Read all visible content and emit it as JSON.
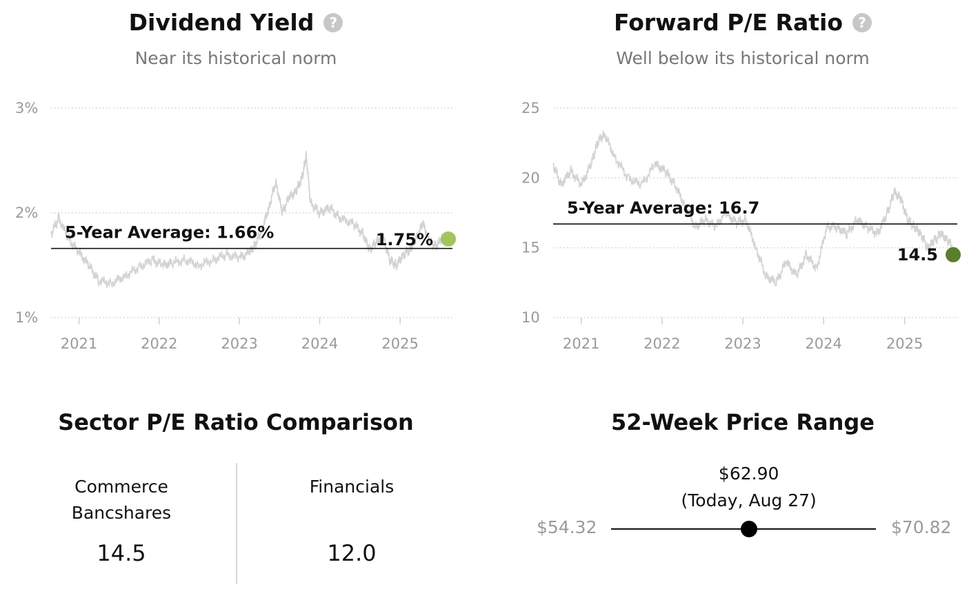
{
  "dividend": {
    "title": "Dividend Yield",
    "help_icon": "question-circle-icon",
    "subtitle": "Near its historical norm",
    "chart_data": {
      "type": "line",
      "ylim": [
        1,
        3
      ],
      "yticks": [
        1,
        2,
        3
      ],
      "ytick_labels": [
        "1%",
        "2%",
        "3%"
      ],
      "xlim": [
        "2020-08-27",
        "2025-08-27"
      ],
      "xticks": [
        "2021-01-01",
        "2022-01-01",
        "2023-01-01",
        "2024-01-01",
        "2025-01-01"
      ],
      "xtick_labels": [
        "2021",
        "2022",
        "2023",
        "2024",
        "2025"
      ],
      "average": 1.66,
      "average_label": "5-Year Average: 1.66%",
      "current": 1.75,
      "current_label": "1.75%",
      "current_color": "#a5c25c",
      "line_color": "#d3d3d3",
      "grid": true,
      "series": [
        {
          "x": [
            "2020-08-27",
            "2020-10-01",
            "2020-11-15",
            "2021-01-01",
            "2021-02-15",
            "2021-04-01",
            "2021-06-01",
            "2021-08-01",
            "2021-10-01",
            "2021-12-01",
            "2022-01-15",
            "2022-03-01",
            "2022-05-01",
            "2022-07-01",
            "2022-09-01",
            "2022-11-01",
            "2023-01-01",
            "2023-02-15",
            "2023-03-15",
            "2023-04-15",
            "2023-05-15",
            "2023-06-15",
            "2023-07-15",
            "2023-08-15",
            "2023-09-15",
            "2023-10-15",
            "2023-11-01",
            "2023-11-20",
            "2024-01-01",
            "2024-02-15",
            "2024-04-01",
            "2024-06-01",
            "2024-07-15",
            "2024-08-15",
            "2024-09-15",
            "2024-10-15",
            "2024-11-15",
            "2024-12-15",
            "2025-01-15",
            "2025-02-15",
            "2025-03-15",
            "2025-04-15",
            "2025-05-15",
            "2025-06-15",
            "2025-07-15",
            "2025-08-27"
          ],
          "y": [
            1.8,
            1.95,
            1.75,
            1.62,
            1.5,
            1.35,
            1.33,
            1.4,
            1.48,
            1.55,
            1.5,
            1.52,
            1.55,
            1.5,
            1.55,
            1.6,
            1.57,
            1.62,
            1.7,
            1.85,
            2.05,
            2.3,
            2.0,
            2.15,
            2.2,
            2.35,
            2.55,
            2.1,
            2.0,
            2.05,
            1.95,
            1.9,
            1.8,
            1.65,
            1.72,
            1.78,
            1.55,
            1.5,
            1.6,
            1.65,
            1.75,
            1.9,
            1.72,
            1.68,
            1.78,
            1.75
          ]
        }
      ]
    }
  },
  "pe": {
    "title": "Forward P/E Ratio",
    "help_icon": "question-circle-icon",
    "subtitle": "Well below its historical norm",
    "chart_data": {
      "type": "line",
      "ylim": [
        10,
        25
      ],
      "yticks": [
        10,
        15,
        20,
        25
      ],
      "ytick_labels": [
        "10",
        "15",
        "20",
        "25"
      ],
      "xlim": [
        "2020-08-27",
        "2025-08-27"
      ],
      "xticks": [
        "2021-01-01",
        "2022-01-01",
        "2023-01-01",
        "2024-01-01",
        "2025-01-01"
      ],
      "xtick_labels": [
        "2021",
        "2022",
        "2023",
        "2024",
        "2025"
      ],
      "average": 16.7,
      "average_label": "5-Year Average: 16.7",
      "current": 14.5,
      "current_label": "14.5",
      "current_color": "#5b7d2e",
      "line_color": "#d3d3d3",
      "grid": true,
      "series": [
        {
          "x": [
            "2020-08-27",
            "2020-10-01",
            "2020-11-15",
            "2021-01-01",
            "2021-02-15",
            "2021-03-15",
            "2021-04-15",
            "2021-06-01",
            "2021-08-01",
            "2021-10-01",
            "2021-12-01",
            "2022-01-15",
            "2022-03-01",
            "2022-04-15",
            "2022-06-01",
            "2022-07-15",
            "2022-09-01",
            "2022-10-15",
            "2022-12-01",
            "2023-01-15",
            "2023-03-01",
            "2023-04-15",
            "2023-06-01",
            "2023-07-15",
            "2023-09-01",
            "2023-10-15",
            "2023-12-01",
            "2024-01-15",
            "2024-03-01",
            "2024-04-15",
            "2024-06-01",
            "2024-07-15",
            "2024-09-01",
            "2024-10-15",
            "2024-11-15",
            "2024-12-15",
            "2025-01-15",
            "2025-02-15",
            "2025-03-15",
            "2025-04-15",
            "2025-05-15",
            "2025-06-15",
            "2025-07-15",
            "2025-08-27"
          ],
          "y": [
            21,
            19.5,
            20.5,
            19.5,
            21,
            22.5,
            23.2,
            21.5,
            20,
            19.5,
            21,
            20.5,
            19.5,
            18,
            16.5,
            17,
            16.5,
            17.5,
            16.8,
            17,
            15,
            13,
            12.5,
            14,
            13,
            14.5,
            13.5,
            16.5,
            16.5,
            16,
            17,
            16.5,
            16,
            17.5,
            19,
            18.5,
            17,
            16.5,
            16,
            15,
            15.5,
            16,
            15.5,
            14.5
          ]
        }
      ]
    }
  },
  "sector": {
    "title": "Sector P/E Ratio Comparison",
    "items": [
      {
        "name_line1": "Commerce",
        "name_line2": "Bancshares",
        "value": "14.5"
      },
      {
        "name_line1": "Financials",
        "name_line2": "",
        "value": "12.0"
      }
    ]
  },
  "range": {
    "title": "52-Week Price Range",
    "current_price": "$62.90",
    "current_note": "(Today, Aug 27)",
    "low_label": "$54.32",
    "high_label": "$70.82",
    "low": 54.32,
    "high": 70.82,
    "current": 62.9
  }
}
